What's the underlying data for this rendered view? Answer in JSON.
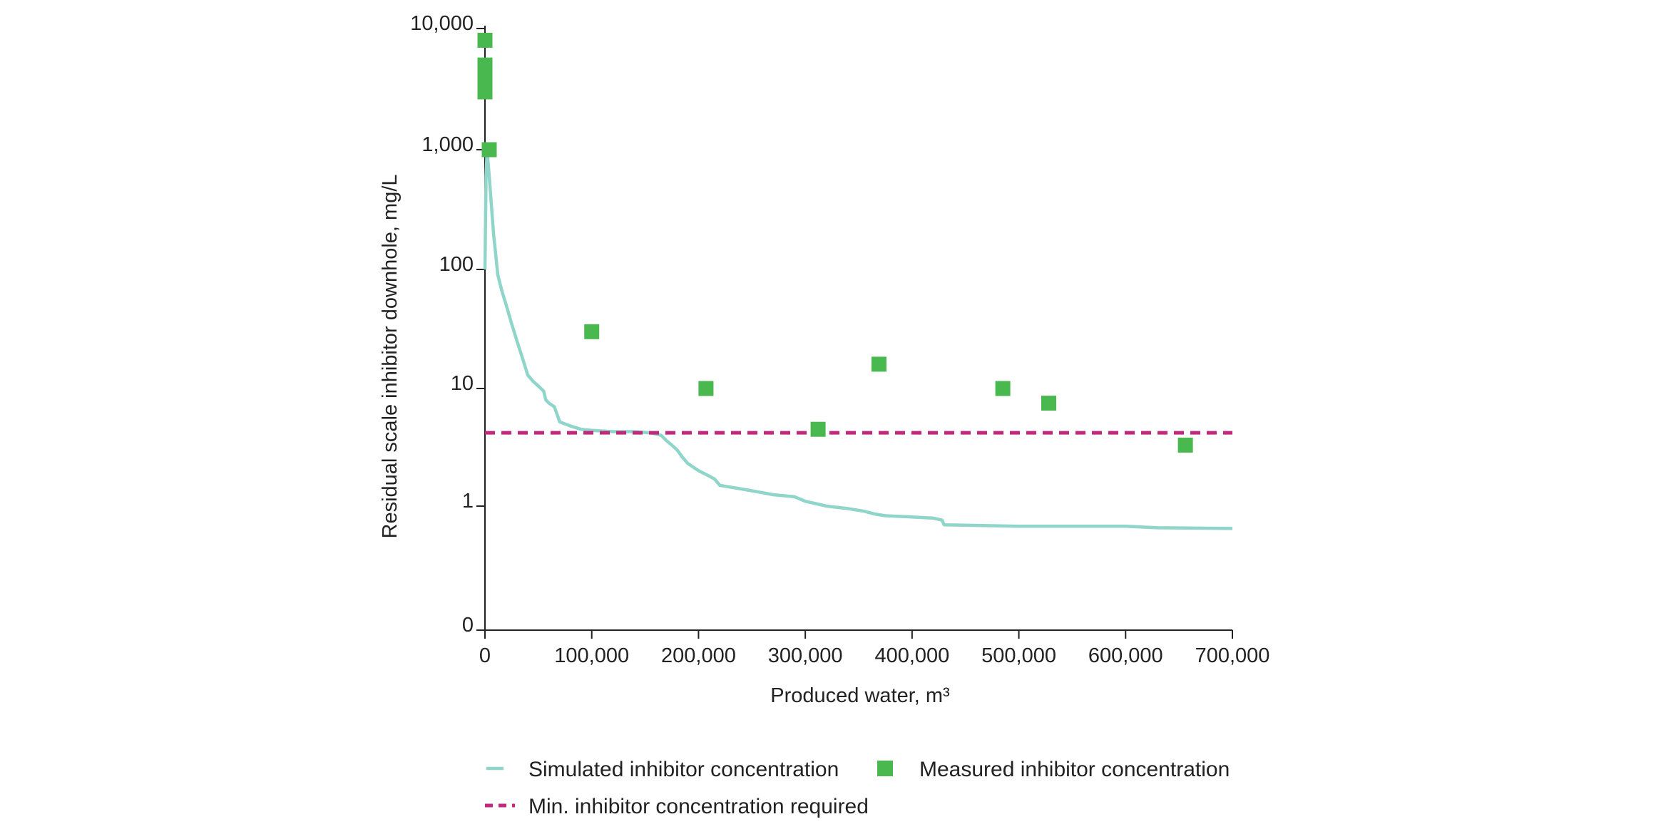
{
  "chart_data": {
    "type": "line",
    "title": "",
    "xlabel": "Produced water, m³",
    "ylabel": "Residual scale inhibitor downhole, mg/L",
    "xlim": [
      0,
      700000
    ],
    "y_scale": "log",
    "ylim": [
      0,
      10000
    ],
    "x_ticks": [
      {
        "value": 0,
        "label": "0"
      },
      {
        "value": 100000,
        "label": "100,000"
      },
      {
        "value": 200000,
        "label": "200,000"
      },
      {
        "value": 300000,
        "label": "300,000"
      },
      {
        "value": 400000,
        "label": "400,000"
      },
      {
        "value": 500000,
        "label": "500,000"
      },
      {
        "value": 600000,
        "label": "600,000"
      },
      {
        "value": 700000,
        "label": "700,000"
      }
    ],
    "y_ticks": [
      {
        "value": 0,
        "label": "0"
      },
      {
        "value": 1,
        "label": "1"
      },
      {
        "value": 10,
        "label": "10"
      },
      {
        "value": 100,
        "label": "100"
      },
      {
        "value": 1000,
        "label": "1,000"
      },
      {
        "value": 10000,
        "label": "10,000"
      }
    ],
    "grid": false,
    "legend_position": "bottom",
    "series": [
      {
        "name": "Simulated inhibitor concentration",
        "kind": "line",
        "color": "#8fd5c9",
        "x": [
          0,
          1000,
          2000,
          4000,
          8000,
          12000,
          16000,
          20000,
          25000,
          30000,
          36000,
          40000,
          45000,
          50000,
          55000,
          57000,
          60000,
          65000,
          70000,
          75000,
          80000,
          90000,
          100000,
          120000,
          140000,
          155000,
          165000,
          170000,
          175000,
          180000,
          185000,
          190000,
          200000,
          210000,
          215000,
          220000,
          240000,
          260000,
          270000,
          290000,
          300000,
          320000,
          340000,
          355000,
          365000,
          375000,
          400000,
          420000,
          428000,
          430000,
          500000,
          600000,
          630000,
          700000
        ],
        "y": [
          100,
          600,
          1000,
          600,
          200,
          90,
          65,
          50,
          35,
          25,
          17,
          13,
          11.5,
          10.5,
          9.5,
          8,
          7.5,
          7,
          5.2,
          5,
          4.8,
          4.5,
          4.4,
          4.3,
          4.3,
          4.2,
          4.0,
          3.6,
          3.3,
          3.0,
          2.6,
          2.3,
          2.0,
          1.8,
          1.7,
          1.5,
          1.4,
          1.3,
          1.25,
          1.2,
          1.1,
          1.0,
          0.95,
          0.9,
          0.85,
          0.82,
          0.8,
          0.78,
          0.75,
          0.68,
          0.66,
          0.66,
          0.64,
          0.63
        ]
      },
      {
        "name": "Measured inhibitor concentration",
        "kind": "scatter",
        "color": "#49b84f",
        "x": [
          0,
          0,
          0,
          0,
          0,
          4000,
          100000,
          207000,
          312000,
          369000,
          485000,
          528000,
          656000
        ],
        "y": [
          8000,
          5000,
          4200,
          3500,
          3000,
          1000,
          30,
          10,
          4.5,
          16,
          10,
          7.5,
          3.3
        ]
      },
      {
        "name": "Min. inhibitor concentration required",
        "kind": "hline",
        "color": "#c2287c",
        "y": 4.2
      }
    ]
  }
}
